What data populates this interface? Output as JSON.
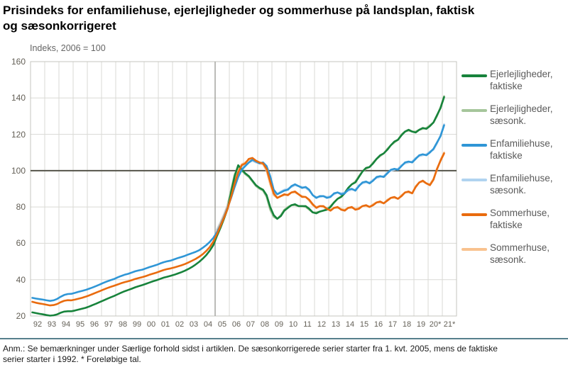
{
  "page": {
    "title_line1": "Prisindeks for enfamiliehuse, ejerlejligheder og sommerhuse på landsplan, faktisk",
    "title_line2": "og sæsonkorrigeret",
    "axis_note": "Indeks, 2006 = 100",
    "footnote_line1": "Anm.: Se bemærkninger under Særlige forhold sidst i artiklen. De sæsonkorrigerede serier starter fra 1. kvt. 2005, mens de faktiske",
    "footnote_line2": "serier starter i 1992.  * Foreløbige tal."
  },
  "chart_data": {
    "type": "line",
    "title": "Prisindeks for enfamiliehuse, ejerlejligheder og sommerhuse på landsplan, faktisk og sæsonkorrigeret",
    "ylabel": "Indeks, 2006 = 100",
    "ylim": [
      20,
      160
    ],
    "yticks": [
      160,
      140,
      120,
      100,
      80,
      60,
      40,
      20
    ],
    "xticks": [
      "92",
      "93",
      "94",
      "95",
      "96",
      "97",
      "98",
      "99",
      "00",
      "01",
      "02",
      "03",
      "04",
      "05",
      "06",
      "07",
      "08",
      "09",
      "10",
      "11",
      "12",
      "13",
      "14",
      "15",
      "16",
      "17",
      "18",
      "19",
      "20*",
      "21*"
    ],
    "x_start_year": 1992,
    "x_end_year": 2022,
    "frequency": "quarterly",
    "reference_line_y": 100,
    "vertical_marker_year": 2005,
    "grid": true,
    "legend_position": "right",
    "colors": {
      "grid": "#dadad5",
      "border": "#c4c4bf",
      "reference_line": "#55544a",
      "marker_line": "#a5a5a0",
      "tick_text": "#635f56",
      "divider_rule": "#567f8c"
    },
    "series": [
      {
        "id": "ejerlejligheder-faktiske",
        "name": "Ejerlejligheder, faktiske",
        "legend": "Ejerlejligheder,\nfaktiske",
        "color": "#17833b",
        "start": 1992,
        "values": [
          22.0,
          21.6,
          21.2,
          20.9,
          20.5,
          20.2,
          20.4,
          20.9,
          21.8,
          22.4,
          22.6,
          22.6,
          23.0,
          23.5,
          24.0,
          24.5,
          25.2,
          26.0,
          26.8,
          27.7,
          28.5,
          29.4,
          30.2,
          31.0,
          31.9,
          32.8,
          33.6,
          34.3,
          35.0,
          35.8,
          36.4,
          37.0,
          37.7,
          38.4,
          39.1,
          39.7,
          40.4,
          41.1,
          41.6,
          42.1,
          42.7,
          43.4,
          44.1,
          44.9,
          45.9,
          47.0,
          48.3,
          49.8,
          51.5,
          53.5,
          56.0,
          59.0,
          64.0,
          68.5,
          73.5,
          79.0,
          88.0,
          97.0,
          103.0,
          100.5,
          98.5,
          97.0,
          94.5,
          92.0,
          90.5,
          89.5,
          86.5,
          80.0,
          75.5,
          73.5,
          75.0,
          78.0,
          79.5,
          81.0,
          81.5,
          80.5,
          80.5,
          80.5,
          79.0,
          77.0,
          76.5,
          77.5,
          78.0,
          78.5,
          80.0,
          82.5,
          84.5,
          85.5,
          87.5,
          90.5,
          92.5,
          93.5,
          96.5,
          99.5,
          101.5,
          102.0,
          104.0,
          106.5,
          108.5,
          109.5,
          111.5,
          114.0,
          116.0,
          117.0,
          119.5,
          121.5,
          122.5,
          121.5,
          121.0,
          122.5,
          123.5,
          123.0,
          124.5,
          126.5,
          130.5,
          134.5,
          140.5
        ]
      },
      {
        "id": "ejerlejligheder-saesonk",
        "name": "Ejerlejligheder, sæsonk.",
        "legend": "Ejerlejligheder,\nsæsonk.",
        "color": "#a6c69b",
        "start": 2005,
        "values": [
          65.5,
          70.0,
          75.0,
          81.0,
          89.5,
          98.0,
          102.0,
          100.0,
          98.0,
          96.5,
          94.0,
          91.5,
          90.0,
          89.0,
          85.5,
          78.5,
          74.5,
          73.5,
          75.5,
          78.5,
          80.0,
          81.0,
          81.0,
          80.5,
          80.5,
          80.0,
          78.5,
          77.0,
          77.0,
          77.5,
          78.0,
          79.0,
          80.5,
          82.5,
          84.5,
          86.0,
          88.0,
          90.5,
          92.5,
          94.0,
          97.0,
          99.5,
          101.0,
          102.0,
          104.5,
          106.5,
          108.0,
          109.5,
          112.0,
          114.0,
          115.5,
          117.0,
          120.0,
          121.5,
          122.0,
          121.5,
          121.5,
          122.5,
          123.0,
          123.5,
          125.0,
          126.5,
          130.0,
          135.0,
          141.0
        ]
      },
      {
        "id": "enfamiliehuse-faktiske",
        "name": "Enfamiliehuse, faktiske",
        "legend": "Enfamiliehuse,\nfaktiske",
        "color": "#2f96d6",
        "start": 1992,
        "values": [
          30.0,
          29.6,
          29.3,
          29.0,
          28.6,
          28.3,
          28.6,
          29.4,
          30.6,
          31.6,
          32.1,
          32.2,
          32.7,
          33.3,
          33.8,
          34.3,
          35.0,
          35.7,
          36.5,
          37.3,
          38.2,
          39.0,
          39.7,
          40.3,
          41.2,
          42.0,
          42.7,
          43.2,
          43.9,
          44.6,
          45.1,
          45.5,
          46.2,
          46.9,
          47.5,
          48.1,
          48.9,
          49.6,
          50.1,
          50.5,
          51.2,
          51.9,
          52.5,
          53.1,
          53.9,
          54.6,
          55.3,
          56.2,
          57.5,
          59.0,
          60.8,
          63.0,
          66.0,
          70.0,
          74.5,
          79.5,
          85.0,
          91.0,
          96.5,
          100.5,
          102.5,
          104.5,
          106.0,
          105.0,
          104.0,
          104.5,
          102.5,
          97.0,
          89.5,
          87.0,
          88.0,
          89.0,
          89.5,
          91.5,
          92.5,
          91.5,
          90.5,
          91.0,
          89.5,
          86.5,
          85.0,
          86.0,
          86.0,
          85.0,
          85.5,
          87.5,
          88.0,
          87.0,
          87.5,
          89.5,
          90.0,
          89.0,
          91.5,
          93.5,
          94.0,
          93.0,
          94.5,
          96.5,
          97.0,
          96.5,
          98.5,
          100.5,
          101.0,
          100.5,
          102.5,
          104.5,
          105.0,
          104.5,
          106.5,
          108.5,
          109.0,
          108.5,
          110.0,
          112.0,
          115.5,
          119.0,
          125.0
        ]
      },
      {
        "id": "enfamiliehuse-saesonk",
        "name": "Enfamiliehuse, sæsonk.",
        "legend": "Enfamiliehuse,\nsæsonk.",
        "color": "#b0d3f0",
        "start": 2005,
        "values": [
          67.5,
          71.5,
          76.0,
          81.0,
          86.5,
          92.5,
          97.5,
          101.5,
          103.0,
          104.5,
          105.5,
          104.5,
          104.0,
          104.0,
          101.5,
          95.5,
          88.5,
          87.0,
          88.5,
          89.5,
          90.0,
          91.0,
          92.0,
          91.5,
          91.0,
          90.5,
          89.0,
          86.5,
          85.5,
          85.5,
          86.0,
          85.5,
          86.0,
          87.0,
          88.0,
          87.5,
          88.0,
          89.0,
          89.5,
          89.5,
          92.0,
          93.0,
          93.5,
          93.5,
          95.0,
          96.0,
          96.5,
          97.0,
          99.0,
          100.0,
          100.5,
          101.0,
          103.0,
          104.0,
          104.5,
          105.0,
          107.0,
          108.0,
          108.5,
          109.0,
          110.5,
          111.5,
          115.0,
          119.5,
          125.5
        ]
      },
      {
        "id": "sommerhuse-faktiske",
        "name": "Sommerhuse, faktiske",
        "legend": "Sommerhuse,\nfaktiske",
        "color": "#e96b0e",
        "start": 1992,
        "values": [
          27.8,
          27.3,
          26.9,
          26.6,
          26.2,
          25.8,
          26.0,
          26.6,
          27.6,
          28.4,
          28.7,
          28.6,
          29.0,
          29.5,
          30.0,
          30.6,
          31.3,
          32.1,
          32.9,
          33.7,
          34.5,
          35.3,
          36.0,
          36.6,
          37.3,
          38.0,
          38.6,
          39.1,
          39.7,
          40.4,
          40.9,
          41.4,
          42.0,
          42.7,
          43.3,
          43.9,
          44.6,
          45.3,
          45.8,
          46.2,
          46.7,
          47.3,
          47.9,
          48.6,
          49.5,
          50.4,
          51.4,
          52.6,
          54.0,
          55.8,
          58.0,
          61.0,
          65.0,
          69.5,
          74.0,
          79.0,
          85.5,
          93.0,
          99.0,
          103.0,
          104.0,
          106.5,
          107.0,
          105.5,
          104.5,
          104.0,
          101.0,
          94.0,
          87.5,
          85.0,
          86.0,
          87.0,
          86.5,
          88.0,
          88.5,
          87.0,
          85.5,
          85.5,
          84.0,
          81.5,
          79.5,
          80.5,
          80.5,
          79.0,
          78.0,
          79.5,
          80.0,
          78.5,
          78.0,
          79.5,
          80.0,
          78.5,
          79.0,
          80.5,
          81.0,
          80.0,
          81.0,
          82.5,
          83.0,
          82.0,
          83.5,
          85.0,
          85.5,
          84.5,
          86.0,
          88.0,
          88.5,
          87.5,
          91.0,
          93.5,
          94.5,
          93.0,
          92.0,
          95.0,
          101.0,
          105.5,
          109.5
        ]
      },
      {
        "id": "sommerhuse-saesonk",
        "name": "Sommerhuse, sæsonk.",
        "legend": "Sommerhuse,\nsæsonk.",
        "color": "#f9c28f",
        "start": 2005,
        "values": [
          66.5,
          71.0,
          75.5,
          80.5,
          87.0,
          94.5,
          100.0,
          103.5,
          104.5,
          106.0,
          106.0,
          105.0,
          104.0,
          103.5,
          100.0,
          92.5,
          86.5,
          85.0,
          86.0,
          86.5,
          87.0,
          88.0,
          88.0,
          87.0,
          86.0,
          85.5,
          83.5,
          81.0,
          80.0,
          80.5,
          80.0,
          79.0,
          78.5,
          79.5,
          79.5,
          79.0,
          78.5,
          79.5,
          79.5,
          79.0,
          79.5,
          80.5,
          80.5,
          80.0,
          81.5,
          82.5,
          82.5,
          82.0,
          84.0,
          85.0,
          85.0,
          84.5,
          86.5,
          88.0,
          88.0,
          87.5,
          91.5,
          93.5,
          94.0,
          93.0,
          92.5,
          95.5,
          100.5,
          106.0,
          110.0
        ]
      }
    ]
  }
}
